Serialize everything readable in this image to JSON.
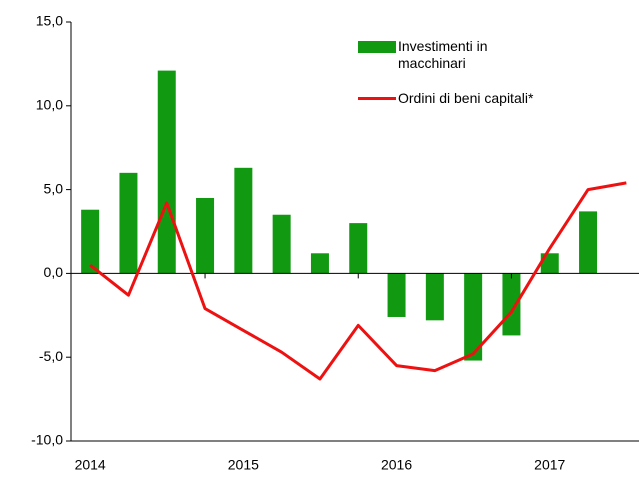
{
  "chart_data": {
    "type": "bar",
    "categories": [
      "2014",
      null,
      null,
      null,
      "2015",
      null,
      null,
      null,
      "2016",
      null,
      null,
      null,
      "2017",
      null,
      null
    ],
    "series": [
      {
        "name": "Investimenti in macchinari",
        "type": "bar",
        "color": "#119911",
        "values": [
          3.8,
          6.0,
          12.1,
          4.5,
          6.3,
          3.5,
          1.2,
          3.0,
          -2.6,
          -2.8,
          -5.2,
          -3.7,
          1.2,
          3.7,
          null
        ]
      },
      {
        "name": "Ordini di beni capitali*",
        "type": "line",
        "color": "#ee1111",
        "values": [
          0.5,
          -1.3,
          4.2,
          -2.1,
          -3.4,
          -4.7,
          -6.3,
          -3.1,
          -5.5,
          -5.8,
          -4.8,
          -2.3,
          1.5,
          5.0,
          5.4
        ]
      }
    ],
    "ylim": [
      -10,
      15
    ],
    "yticks": [
      {
        "value": -10,
        "label": "-10,0"
      },
      {
        "value": -5,
        "label": "-5,0"
      },
      {
        "value": 0,
        "label": "0,0"
      },
      {
        "value": 5,
        "label": "5,0"
      },
      {
        "value": 10,
        "label": "10,0"
      },
      {
        "value": 15,
        "label": "15,0"
      }
    ],
    "legend": "upper right"
  }
}
